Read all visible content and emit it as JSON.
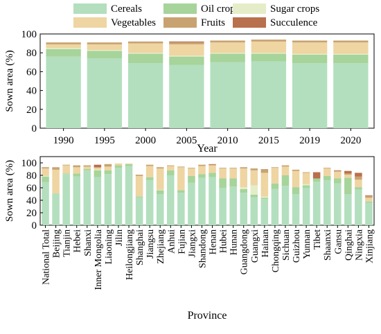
{
  "colors": {
    "Cereals": "#b3dfbe",
    "Oil crops": "#a6d49a",
    "Sugar crops": "#e4edc7",
    "Vegetables": "#eed5a2",
    "Fruits": "#c8a371",
    "Succulence": "#b8704d"
  },
  "legend": [
    "Cereals",
    "Oil crops",
    "Sugar crops",
    "Vegetables",
    "Fruits",
    "Succulence"
  ],
  "chart_data": [
    {
      "type": "bar",
      "stacked": true,
      "xlabel": "Year",
      "ylabel": "Sown area (%)",
      "ylim": [
        0,
        100
      ],
      "yticks": [
        0,
        20,
        40,
        60,
        80,
        100
      ],
      "categories": [
        "1990",
        "1995",
        "2000",
        "2005",
        "2010",
        "2015",
        "2019",
        "2020"
      ],
      "series": [
        {
          "name": "Cereals",
          "values": [
            76,
            74,
            69,
            67,
            70,
            71,
            69,
            69
          ]
        },
        {
          "name": "Oil crops",
          "values": [
            8,
            8,
            10,
            9,
            9,
            8,
            9,
            9
          ]
        },
        {
          "name": "Sugar crops",
          "values": [
            1,
            1,
            1,
            1,
            1,
            1,
            1,
            1
          ]
        },
        {
          "name": "Vegetables",
          "values": [
            4,
            6,
            10,
            12,
            11,
            12,
            12,
            12
          ]
        },
        {
          "name": "Fruits",
          "values": [
            2,
            2,
            2,
            2,
            2,
            2,
            2,
            2
          ]
        },
        {
          "name": "Succulence",
          "values": [
            0,
            0,
            0,
            1,
            0,
            0,
            0,
            0
          ]
        }
      ]
    },
    {
      "type": "bar",
      "stacked": true,
      "xlabel": "Province",
      "ylabel": "Sown area (%)",
      "ylim": [
        0,
        110
      ],
      "yticks": [
        0,
        20,
        40,
        60,
        80,
        100
      ],
      "categories": [
        "National Total",
        "Beijing",
        "Tianjin",
        "Hebei",
        "Shanxi",
        "Inner Mongolia",
        "Liaoning",
        "Jilin",
        "Heilongjiang",
        "Shanghai",
        "Jiangsu",
        "Zhejiang",
        "Anhui",
        "Fujian",
        "Jiangxi",
        "Shandong",
        "Henan",
        "Hubei",
        "Hunan",
        "Guangdong",
        "Guangxi",
        "Hainan",
        "Chongqing",
        "Sichuan",
        "Guizhou",
        "Yunnan",
        "Tibet",
        "Shaanxi",
        "Gansu",
        "Qinghai",
        "Ningxia",
        "Xinjiang"
      ],
      "series": [
        {
          "name": "Cereals",
          "values": [
            69,
            51,
            82,
            78,
            88,
            77,
            82,
            92,
            95,
            45,
            72,
            50,
            80,
            52,
            68,
            76,
            77,
            60,
            62,
            52,
            45,
            42,
            58,
            63,
            50,
            60,
            70,
            72,
            67,
            50,
            57,
            36
          ]
        },
        {
          "name": "Oil crops",
          "values": [
            9,
            0,
            1,
            5,
            2,
            11,
            6,
            4,
            3,
            1,
            5,
            6,
            8,
            4,
            11,
            6,
            7,
            15,
            13,
            6,
            4,
            2,
            9,
            17,
            11,
            4,
            5,
            7,
            8,
            26,
            4,
            2
          ]
        },
        {
          "name": "Sugar crops",
          "values": [
            1,
            0,
            0,
            0,
            0,
            1,
            0,
            0,
            0,
            0,
            0,
            1,
            0,
            0,
            0,
            0,
            0,
            0,
            0,
            3,
            15,
            2,
            0,
            0,
            0,
            2,
            0,
            0,
            0,
            0,
            0,
            0
          ]
        },
        {
          "name": "Vegetables",
          "values": [
            12,
            38,
            13,
            10,
            4,
            3,
            6,
            3,
            1,
            33,
            18,
            34,
            7,
            37,
            12,
            13,
            12,
            16,
            16,
            30,
            24,
            38,
            25,
            14,
            26,
            18,
            0,
            12,
            11,
            5,
            12,
            6
          ]
        },
        {
          "name": "Fruits",
          "values": [
            2,
            4,
            1,
            3,
            2,
            1,
            4,
            0,
            0,
            2,
            2,
            2,
            1,
            1,
            1,
            2,
            1,
            1,
            1,
            2,
            3,
            6,
            1,
            2,
            2,
            1,
            0,
            1,
            1,
            2,
            5,
            3
          ]
        },
        {
          "name": "Succulence",
          "values": [
            0,
            0,
            0,
            0,
            0,
            4,
            0,
            0,
            0,
            0,
            0,
            0,
            0,
            0,
            0,
            0,
            1,
            0,
            0,
            0,
            0,
            0,
            0,
            0,
            0,
            0,
            10,
            0,
            1,
            4,
            6,
            1
          ]
        }
      ]
    }
  ]
}
